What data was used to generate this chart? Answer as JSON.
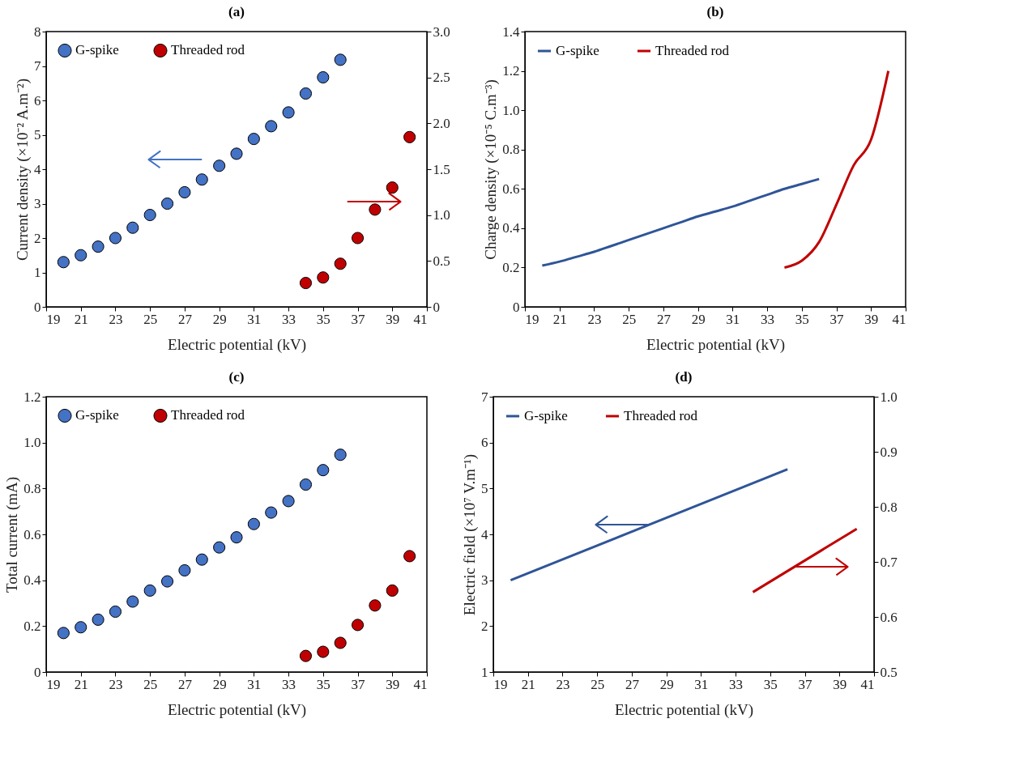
{
  "chart_data": [
    {
      "type": "scatter",
      "title": "(a)",
      "xlabel": "Electric potential (kV)",
      "ylabel": "Current density (×10⁻² A.m⁻²)",
      "legend": "top left",
      "grid": false,
      "marker": "circle",
      "xlim": [
        19,
        41
      ],
      "xticks": [
        19,
        21,
        23,
        25,
        27,
        29,
        31,
        33,
        35,
        37,
        39,
        41
      ],
      "ylim": [
        0,
        8
      ],
      "yticks": [
        0,
        1,
        2,
        3,
        4,
        5,
        6,
        7,
        8
      ],
      "y2lim": [
        0,
        3
      ],
      "y2ticks": [
        0,
        0.5,
        {
          "value": 1,
          "label": "1.0"
        },
        1.5,
        {
          "value": 2,
          "label": "2.0"
        },
        2.5,
        {
          "value": 3,
          "label": "3.0"
        }
      ],
      "series": [
        {
          "name": "G-spike",
          "color": "#4472c4",
          "x": [
            20,
            21,
            22,
            23,
            24,
            25,
            26,
            27,
            28,
            29,
            30,
            31,
            32,
            33,
            34,
            35,
            36
          ],
          "values": [
            1.3,
            1.5,
            1.75,
            2.0,
            2.3,
            2.67,
            3.0,
            3.33,
            3.7,
            4.1,
            4.45,
            4.88,
            5.25,
            5.65,
            6.2,
            6.67,
            7.18
          ]
        },
        {
          "name": "Threaded rod",
          "color": "#c00000",
          "axis": "y2",
          "x": [
            34,
            35,
            36,
            37,
            38,
            39,
            40
          ],
          "values": [
            0.26,
            0.32,
            0.47,
            0.75,
            1.06,
            1.3,
            1.85
          ]
        }
      ]
    },
    {
      "type": "line",
      "title": "(b)",
      "xlabel": "Electric potential (kV)",
      "ylabel": "Charge density (×10⁻⁵ C.m⁻³)",
      "legend": "top left",
      "grid": false,
      "xlim": [
        19,
        41
      ],
      "xticks": [
        19,
        21,
        23,
        25,
        27,
        29,
        31,
        33,
        35,
        37,
        39,
        41
      ],
      "ylim": [
        0,
        1.4
      ],
      "yticks": [
        0,
        0.2,
        0.4,
        0.6,
        0.8,
        {
          "value": 1,
          "label": "1.0"
        },
        1.2,
        1.4
      ],
      "series": [
        {
          "name": "G-spike",
          "color": "#2f5597",
          "x": [
            20,
            21,
            22,
            23,
            24,
            25,
            26,
            27,
            28,
            29,
            30,
            31,
            32,
            33,
            34,
            35,
            36
          ],
          "values": [
            0.21,
            0.23,
            0.255,
            0.28,
            0.31,
            0.34,
            0.37,
            0.4,
            0.43,
            0.46,
            0.485,
            0.51,
            0.54,
            0.57,
            0.6,
            0.625,
            0.65
          ]
        },
        {
          "name": "Threaded rod",
          "color": "#c00000",
          "x": [
            34,
            35,
            36,
            37,
            38,
            39,
            40
          ],
          "values": [
            0.2,
            0.235,
            0.33,
            0.52,
            0.72,
            0.85,
            1.2
          ]
        }
      ]
    },
    {
      "type": "scatter",
      "title": "(c)",
      "xlabel": "Electric potential (kV)",
      "ylabel": "Total current (mA)",
      "legend": "top left",
      "grid": false,
      "marker": "circle",
      "xlim": [
        19,
        41
      ],
      "xticks": [
        19,
        21,
        23,
        25,
        27,
        29,
        31,
        33,
        35,
        37,
        39,
        41
      ],
      "ylim": [
        0,
        1.2
      ],
      "yticks": [
        0,
        0.2,
        0.4,
        0.6,
        0.8,
        {
          "value": 1,
          "label": "1.0"
        },
        1.2
      ],
      "series": [
        {
          "name": "G-spike",
          "color": "#4472c4",
          "x": [
            20,
            21,
            22,
            23,
            24,
            25,
            26,
            27,
            28,
            29,
            30,
            31,
            32,
            33,
            34,
            35,
            36
          ],
          "values": [
            0.17,
            0.195,
            0.228,
            0.263,
            0.307,
            0.355,
            0.395,
            0.443,
            0.49,
            0.543,
            0.587,
            0.645,
            0.695,
            0.745,
            0.817,
            0.88,
            0.947
          ]
        },
        {
          "name": "Threaded rod",
          "color": "#c00000",
          "x": [
            34,
            35,
            36,
            37,
            38,
            39,
            40
          ],
          "values": [
            0.07,
            0.088,
            0.127,
            0.205,
            0.29,
            0.355,
            0.505
          ]
        }
      ]
    },
    {
      "type": "line",
      "title": "(d)",
      "xlabel": "Electric potential (kV)",
      "ylabel": "Electric field (×10⁷ V.m⁻¹)",
      "legend": "top left",
      "grid": false,
      "xlim": [
        19,
        41
      ],
      "xticks": [
        19,
        21,
        23,
        25,
        27,
        29,
        31,
        33,
        35,
        37,
        39,
        41
      ],
      "ylim": [
        1,
        7
      ],
      "yticks": [
        1,
        2,
        3,
        4,
        5,
        6,
        7
      ],
      "y2lim": [
        0.5,
        1.0
      ],
      "y2ticks": [
        0.5,
        0.6,
        0.7,
        0.8,
        0.9,
        {
          "value": 1,
          "label": "1.0"
        }
      ],
      "series": [
        {
          "name": "G-spike",
          "color": "#2f5597",
          "x": [
            20,
            28,
            36
          ],
          "values": [
            3.0,
            4.21,
            5.42
          ]
        },
        {
          "name": "Threaded rod",
          "color": "#c00000",
          "axis": "y2",
          "x": [
            34,
            40
          ],
          "values": [
            0.645,
            0.76
          ]
        }
      ]
    }
  ]
}
